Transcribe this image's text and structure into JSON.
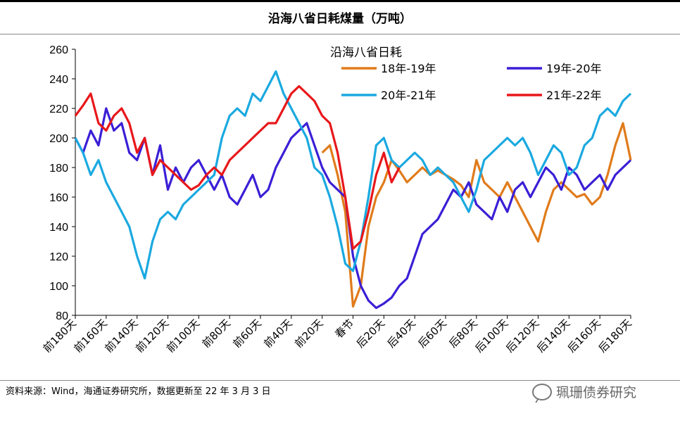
{
  "title": "沿海八省日耗煤量（万吨）",
  "source": "资料来源：Wind，海通证券研究所，数据更新至 22 年 3 月 3 日",
  "watermark": "珮珊债券研究",
  "chart_data": {
    "type": "line",
    "title": "沿海八省日耗",
    "ylim": [
      80,
      260
    ],
    "yticks": [
      80,
      100,
      120,
      140,
      160,
      180,
      200,
      220,
      240,
      260
    ],
    "x_categories": [
      "前180天",
      "前160天",
      "前140天",
      "前120天",
      "前100天",
      "前80天",
      "前60天",
      "前40天",
      "前20天",
      "春节",
      "后20天",
      "后40天",
      "后60天",
      "后80天",
      "后100天",
      "后120天",
      "后140天",
      "后160天",
      "后180天"
    ],
    "x_range": [
      -180,
      180
    ],
    "grid": false,
    "legend": "top-right",
    "series": [
      {
        "name": "18年-19年",
        "color": "#E07B1A",
        "x": [
          -20,
          -15,
          -10,
          -5,
          0,
          5,
          10,
          15,
          20,
          25,
          30,
          35,
          40,
          45,
          50,
          55,
          60,
          65,
          70,
          75,
          80,
          85,
          90,
          95,
          100,
          105,
          110,
          115,
          120,
          125,
          130,
          135,
          140,
          145,
          150,
          155,
          160,
          165,
          170,
          175,
          180
        ],
        "y": [
          190,
          195,
          175,
          150,
          86,
          100,
          140,
          160,
          170,
          185,
          178,
          170,
          175,
          180,
          175,
          178,
          175,
          172,
          168,
          160,
          185,
          170,
          165,
          160,
          170,
          160,
          150,
          140,
          130,
          150,
          165,
          170,
          165,
          160,
          162,
          155,
          160,
          175,
          195,
          210,
          185
        ]
      },
      {
        "name": "19年-20年",
        "color": "#3A1FD6",
        "x": [
          -180,
          -175,
          -170,
          -165,
          -160,
          -155,
          -150,
          -145,
          -140,
          -135,
          -130,
          -125,
          -120,
          -115,
          -110,
          -105,
          -100,
          -95,
          -90,
          -85,
          -80,
          -75,
          -70,
          -65,
          -60,
          -55,
          -50,
          -45,
          -40,
          -35,
          -30,
          -25,
          -20,
          -15,
          -10,
          -5,
          0,
          5,
          10,
          15,
          20,
          25,
          30,
          35,
          40,
          45,
          50,
          55,
          60,
          65,
          70,
          75,
          80,
          85,
          90,
          95,
          100,
          105,
          110,
          115,
          120,
          125,
          130,
          135,
          140,
          145,
          150,
          155,
          160,
          165,
          170,
          175,
          180
        ],
        "y": [
          200,
          190,
          205,
          195,
          220,
          205,
          210,
          190,
          185,
          200,
          175,
          195,
          165,
          180,
          170,
          180,
          185,
          175,
          165,
          175,
          160,
          155,
          165,
          175,
          160,
          165,
          180,
          190,
          200,
          205,
          210,
          195,
          180,
          170,
          165,
          160,
          120,
          100,
          90,
          85,
          88,
          92,
          100,
          105,
          120,
          135,
          140,
          145,
          155,
          165,
          160,
          170,
          155,
          150,
          145,
          160,
          150,
          165,
          170,
          160,
          170,
          180,
          175,
          165,
          180,
          175,
          165,
          170,
          175,
          165,
          175,
          180,
          185
        ]
      },
      {
        "name": "20年-21年",
        "color": "#1AA9E0",
        "x": [
          -180,
          -175,
          -170,
          -165,
          -160,
          -155,
          -150,
          -145,
          -140,
          -135,
          -130,
          -125,
          -120,
          -115,
          -110,
          -105,
          -100,
          -95,
          -90,
          -85,
          -80,
          -75,
          -70,
          -65,
          -60,
          -55,
          -50,
          -45,
          -40,
          -35,
          -30,
          -25,
          -20,
          -15,
          -10,
          -5,
          0,
          5,
          10,
          15,
          20,
          25,
          30,
          35,
          40,
          45,
          50,
          55,
          60,
          65,
          70,
          75,
          80,
          85,
          90,
          95,
          100,
          105,
          110,
          115,
          120,
          125,
          130,
          135,
          140,
          145,
          150,
          155,
          160,
          165,
          170,
          175,
          180
        ],
        "y": [
          200,
          190,
          175,
          185,
          170,
          160,
          150,
          140,
          120,
          105,
          130,
          145,
          150,
          145,
          155,
          160,
          165,
          170,
          175,
          200,
          215,
          220,
          215,
          230,
          225,
          235,
          245,
          230,
          220,
          210,
          200,
          180,
          175,
          160,
          140,
          115,
          110,
          130,
          160,
          195,
          200,
          185,
          180,
          185,
          190,
          185,
          175,
          180,
          175,
          170,
          160,
          150,
          165,
          185,
          190,
          195,
          200,
          195,
          200,
          190,
          175,
          185,
          195,
          190,
          175,
          180,
          195,
          200,
          215,
          220,
          215,
          225,
          230
        ]
      },
      {
        "name": "21年-22年",
        "color": "#E8171A",
        "x": [
          -180,
          -175,
          -170,
          -165,
          -160,
          -155,
          -150,
          -145,
          -140,
          -135,
          -130,
          -125,
          -120,
          -115,
          -110,
          -105,
          -100,
          -95,
          -90,
          -85,
          -80,
          -75,
          -70,
          -65,
          -60,
          -55,
          -50,
          -45,
          -40,
          -35,
          -30,
          -25,
          -20,
          -15,
          -10,
          -5,
          0,
          5,
          10,
          15,
          20,
          25,
          30
        ],
        "y": [
          215,
          222,
          230,
          210,
          205,
          215,
          220,
          210,
          190,
          200,
          175,
          185,
          180,
          175,
          170,
          165,
          168,
          175,
          180,
          175,
          185,
          190,
          195,
          200,
          205,
          210,
          210,
          220,
          230,
          235,
          230,
          225,
          215,
          210,
          190,
          160,
          125,
          130,
          150,
          175,
          190,
          170,
          180
        ]
      }
    ]
  }
}
